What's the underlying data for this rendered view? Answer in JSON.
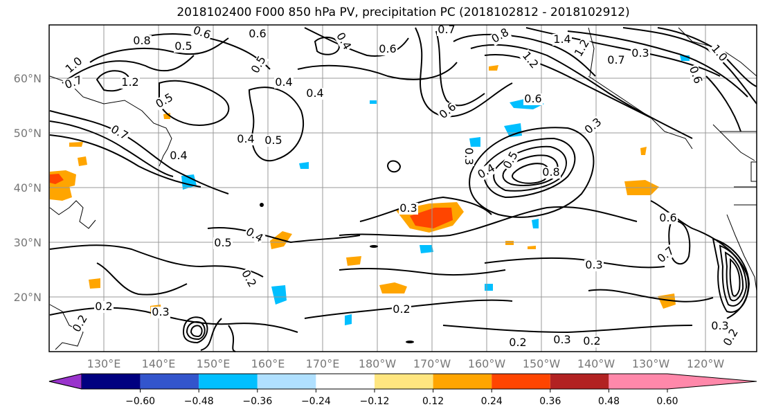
{
  "title": "2018102400 F000 850 hPa PV, precipitation PC (2018102812 - 2018102912)",
  "map": {
    "lat_labels": [
      "60°N",
      "50°N",
      "40°N",
      "30°N",
      "20°N"
    ],
    "lon_labels": [
      "130°E",
      "140°E",
      "150°E",
      "160°E",
      "170°E",
      "180°W",
      "170°W",
      "160°W",
      "150°W",
      "140°W",
      "130°W",
      "120°W"
    ],
    "contour_labels": [
      "0.8",
      "0.6",
      "0.5",
      "0.6",
      "0.4",
      "0.8",
      "0.7",
      "1.4",
      "1.2",
      "1.0",
      "0.7",
      "1.2",
      "0.5",
      "0.4",
      "0.6",
      "1.2",
      "0.7",
      "0.6",
      "1.0",
      "0.5",
      "0.4",
      "0.5",
      "0.6",
      "0.3",
      "0.4",
      "0.7",
      "0.4",
      "0.3",
      "0.8",
      "0.3",
      "0.5",
      "0.4",
      "0.6",
      "0.7",
      "0.3",
      "0.2",
      "0.2",
      "0.3",
      "0.2",
      "0.2",
      "0.2",
      "0.3",
      "0.3",
      "0.2",
      "0.6",
      "0.5",
      "0.4",
      "0.3",
      "0.2"
    ]
  },
  "colorbar": {
    "colors": [
      "#9933cc",
      "#000080",
      "#3355cc",
      "#00bfff",
      "#b0e0ff",
      "#ffffff",
      "#ffe680",
      "#ffa500",
      "#ff4500",
      "#b22222",
      "#ff88aa"
    ],
    "ticks": [
      "−0.60",
      "−0.48",
      "−0.36",
      "−0.24",
      "−0.12",
      "0.12",
      "0.24",
      "0.36",
      "0.48",
      "0.60"
    ]
  }
}
